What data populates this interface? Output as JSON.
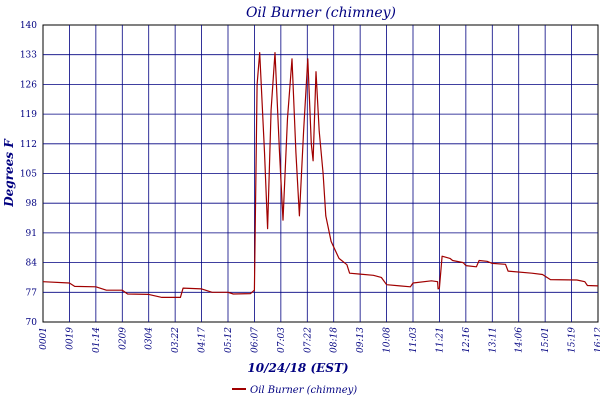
{
  "chart_data": {
    "type": "line",
    "title": "Oil Burner (chimney)",
    "xlabel": "10/24/18 (EST)",
    "ylabel": "Degrees F",
    "ylim": [
      70,
      140
    ],
    "yticks": [
      70,
      77,
      84,
      91,
      98,
      105,
      112,
      119,
      126,
      133,
      140
    ],
    "ytick_labels": [
      "70",
      "77",
      "84",
      "91",
      "98",
      "105",
      "112",
      "119",
      "126",
      "133",
      "140"
    ],
    "xtick_labels": [
      "0001",
      "0019",
      "01:14",
      "0209",
      "0304",
      "03:22",
      "04:17",
      "05:12",
      "06:07",
      "07:03",
      "07:22",
      "08:18",
      "09:13",
      "10:08",
      "11:03",
      "11:21",
      "12:16",
      "13:11",
      "14:06",
      "15:01",
      "15:19",
      "16:12"
    ],
    "grid": true,
    "legend_position": "bottom",
    "series": [
      {
        "name": "Oil Burner (chimney)",
        "color": "#a00000",
        "points": [
          [
            0,
            79.5
          ],
          [
            1,
            79.2
          ],
          [
            1.2,
            78.4
          ],
          [
            2,
            78.3
          ],
          [
            2.4,
            77.5
          ],
          [
            3,
            77.5
          ],
          [
            3.2,
            76.6
          ],
          [
            4,
            76.5
          ],
          [
            4.5,
            75.8
          ],
          [
            5.2,
            75.8
          ],
          [
            5.3,
            78.0
          ],
          [
            6,
            77.8
          ],
          [
            6.4,
            77.0
          ],
          [
            7,
            77.0
          ],
          [
            7.2,
            76.6
          ],
          [
            7.85,
            76.7
          ],
          [
            8,
            77.5
          ],
          [
            8.1,
            126
          ],
          [
            8.2,
            133.5
          ],
          [
            8.38,
            110
          ],
          [
            8.5,
            92
          ],
          [
            8.63,
            120
          ],
          [
            8.78,
            133.5
          ],
          [
            8.95,
            110
          ],
          [
            9.08,
            94
          ],
          [
            9.25,
            118
          ],
          [
            9.42,
            132
          ],
          [
            9.57,
            110
          ],
          [
            9.7,
            95
          ],
          [
            9.86,
            115
          ],
          [
            10.02,
            132
          ],
          [
            10.15,
            112
          ],
          [
            10.22,
            108
          ],
          [
            10.33,
            129
          ],
          [
            10.45,
            115
          ],
          [
            10.6,
            105
          ],
          [
            10.7,
            95
          ],
          [
            10.9,
            89
          ],
          [
            11.2,
            85
          ],
          [
            11.5,
            83.5
          ],
          [
            11.6,
            81.5
          ],
          [
            12,
            81.3
          ],
          [
            12.5,
            81.0
          ],
          [
            12.8,
            80.5
          ],
          [
            13,
            78.8
          ],
          [
            13.5,
            78.5
          ],
          [
            13.9,
            78.3
          ],
          [
            14,
            79.2
          ],
          [
            14.7,
            79.7
          ],
          [
            14.93,
            79.5
          ],
          [
            14.95,
            77.8
          ],
          [
            15,
            78.0
          ],
          [
            15.1,
            85.5
          ],
          [
            15.4,
            85.0
          ],
          [
            15.5,
            84.5
          ],
          [
            15.9,
            84.0
          ],
          [
            16.0,
            83.3
          ],
          [
            16.4,
            83.0
          ],
          [
            16.5,
            84.5
          ],
          [
            16.8,
            84.3
          ],
          [
            17.0,
            83.8
          ],
          [
            17.5,
            83.6
          ],
          [
            17.6,
            82.0
          ],
          [
            18.5,
            81.5
          ],
          [
            18.9,
            81.2
          ],
          [
            19.2,
            80.0
          ],
          [
            20.2,
            79.9
          ],
          [
            20.5,
            79.5
          ],
          [
            20.6,
            78.6
          ],
          [
            21,
            78.5
          ]
        ]
      }
    ]
  },
  "legend": {
    "label": "Oil Burner (chimney)"
  }
}
